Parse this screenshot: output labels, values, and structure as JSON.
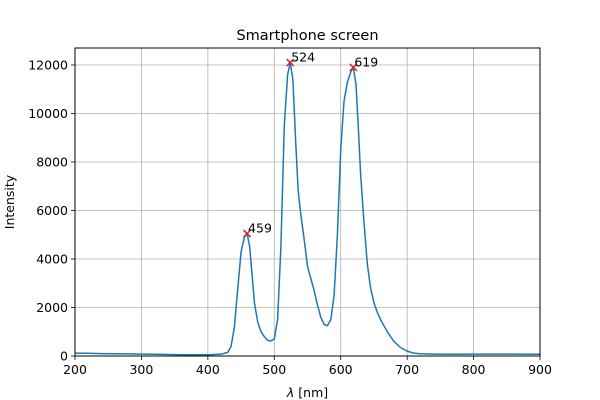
{
  "chart_data": {
    "type": "line",
    "title": "Smartphone screen",
    "xlabel_symbol": "λ",
    "xlabel_unit": "[nm]",
    "ylabel": "Intensity",
    "xlim": [
      200,
      900
    ],
    "ylim": [
      0,
      12700
    ],
    "xticks": [
      200,
      300,
      400,
      500,
      600,
      700,
      800,
      900
    ],
    "yticks": [
      0,
      2000,
      4000,
      6000,
      8000,
      10000,
      12000
    ],
    "grid": true,
    "series": [
      {
        "color": "#1f77b4",
        "x": [
          200,
          220,
          240,
          260,
          280,
          300,
          320,
          340,
          360,
          380,
          400,
          410,
          420,
          430,
          435,
          440,
          445,
          450,
          455,
          459,
          463,
          467,
          470,
          475,
          480,
          485,
          490,
          495,
          500,
          505,
          510,
          515,
          520,
          524,
          528,
          532,
          536,
          540,
          545,
          550,
          555,
          560,
          565,
          570,
          575,
          580,
          585,
          590,
          595,
          600,
          605,
          610,
          615,
          619,
          623,
          627,
          630,
          635,
          640,
          645,
          650,
          655,
          660,
          670,
          680,
          690,
          700,
          710,
          720,
          740,
          760,
          780,
          800,
          820,
          840,
          860,
          880,
          900
        ],
        "y": [
          120,
          110,
          100,
          90,
          85,
          80,
          70,
          60,
          55,
          50,
          50,
          60,
          80,
          150,
          400,
          1200,
          2800,
          4300,
          4900,
          5050,
          4500,
          3200,
          2200,
          1400,
          1000,
          800,
          650,
          620,
          700,
          1500,
          4500,
          9500,
          11600,
          12100,
          11400,
          9000,
          6800,
          5800,
          4800,
          3700,
          3200,
          2700,
          2100,
          1600,
          1300,
          1250,
          1500,
          2500,
          5000,
          8500,
          10500,
          11300,
          11700,
          11900,
          11200,
          9200,
          7500,
          5500,
          3800,
          2800,
          2200,
          1800,
          1500,
          1000,
          600,
          350,
          200,
          120,
          90,
          80,
          70,
          70,
          80,
          80,
          80,
          80,
          70,
          70
        ]
      }
    ],
    "markers": [
      {
        "x": 459,
        "y": 5050,
        "label": "459",
        "color": "#d62728"
      },
      {
        "x": 524,
        "y": 12100,
        "label": "524",
        "color": "#d62728"
      },
      {
        "x": 619,
        "y": 11900,
        "label": "619",
        "color": "#d62728"
      }
    ]
  }
}
